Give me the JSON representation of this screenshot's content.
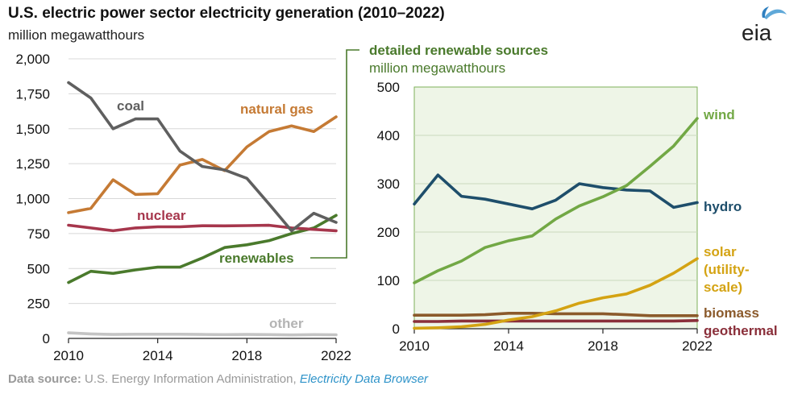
{
  "title": "U.S. electric power sector electricity generation (2010–2022)",
  "units": "million megawatthours",
  "logo_text": "eia",
  "source": {
    "label": "Data source:",
    "text": " U.S. Energy Information Administration, ",
    "link": "Electricity Data Browser"
  },
  "colors": {
    "coal": "#5f5f5f",
    "natural_gas": "#c57a34",
    "nuclear": "#a6364c",
    "renewables": "#4a7a2c",
    "other": "#c4c4c4",
    "wind": "#72a845",
    "hydro": "#1e4e6b",
    "solar": "#d4a313",
    "biomass": "#8b5a2b",
    "geothermal": "#8a2f3a",
    "panel_bg": "#eef5e7",
    "panel_border": "#7eb05a",
    "grid": "#d8d8d8"
  },
  "chart_data": [
    {
      "type": "line",
      "title": "U.S. electric power sector electricity generation (2010–2022)",
      "ylabel": "million megawatthours",
      "xlim": [
        2010,
        2022
      ],
      "ylim": [
        0,
        2000
      ],
      "xticks": [
        "2010",
        "2014",
        "2018",
        "2022"
      ],
      "yticks": [
        "0",
        "250",
        "500",
        "750",
        "1,000",
        "1,250",
        "1,500",
        "1,750",
        "2,000"
      ],
      "x": [
        2010,
        2011,
        2012,
        2013,
        2014,
        2015,
        2016,
        2017,
        2018,
        2019,
        2020,
        2021,
        2022
      ],
      "series": [
        {
          "key": "coal",
          "name": "coal",
          "values": [
            1830,
            1720,
            1500,
            1570,
            1570,
            1340,
            1230,
            1205,
            1145,
            960,
            770,
            895,
            830
          ]
        },
        {
          "key": "natural_gas",
          "name": "natural gas",
          "values": [
            900,
            930,
            1135,
            1030,
            1035,
            1240,
            1280,
            1200,
            1370,
            1480,
            1520,
            1480,
            1585
          ]
        },
        {
          "key": "nuclear",
          "name": "nuclear",
          "values": [
            810,
            790,
            770,
            790,
            798,
            798,
            806,
            805,
            807,
            809,
            790,
            780,
            770
          ]
        },
        {
          "key": "renewables",
          "name": "renewables",
          "values": [
            400,
            480,
            465,
            490,
            510,
            510,
            575,
            650,
            670,
            700,
            750,
            790,
            880
          ]
        },
        {
          "key": "other",
          "name": "other",
          "values": [
            40,
            32,
            28,
            30,
            30,
            30,
            28,
            27,
            28,
            27,
            25,
            27,
            26
          ]
        }
      ],
      "annotations": [
        "coal",
        "natural gas",
        "nuclear",
        "renewables",
        "other"
      ]
    },
    {
      "type": "line",
      "title": "detailed renewable sources",
      "ylabel": "million megawatthours",
      "xlim": [
        2010,
        2022
      ],
      "ylim": [
        0,
        500
      ],
      "xticks": [
        "2010",
        "2014",
        "2018",
        "2022"
      ],
      "yticks": [
        "0",
        "100",
        "200",
        "300",
        "400",
        "500"
      ],
      "x": [
        2010,
        2011,
        2012,
        2013,
        2014,
        2015,
        2016,
        2017,
        2018,
        2019,
        2020,
        2021,
        2022
      ],
      "series": [
        {
          "key": "wind",
          "name": "wind",
          "values": [
            95,
            120,
            140,
            168,
            182,
            192,
            227,
            254,
            273,
            296,
            336,
            378,
            435
          ]
        },
        {
          "key": "hydro",
          "name": "hydro",
          "values": [
            258,
            318,
            274,
            268,
            258,
            248,
            266,
            300,
            292,
            287,
            285,
            251,
            261
          ]
        },
        {
          "key": "solar",
          "name": "solar (utility-scale)",
          "label_lines": [
            "solar",
            "(utility-",
            "scale)"
          ],
          "values": [
            1,
            2,
            4,
            9,
            18,
            25,
            37,
            53,
            64,
            72,
            90,
            115,
            145
          ]
        },
        {
          "key": "biomass",
          "name": "biomass",
          "values": [
            28,
            28,
            28,
            29,
            32,
            32,
            31,
            31,
            31,
            29,
            27,
            27,
            27
          ]
        },
        {
          "key": "geothermal",
          "name": "geothermal",
          "values": [
            15,
            15,
            16,
            16,
            16,
            16,
            16,
            16,
            16,
            16,
            16,
            16,
            17
          ]
        }
      ]
    }
  ]
}
